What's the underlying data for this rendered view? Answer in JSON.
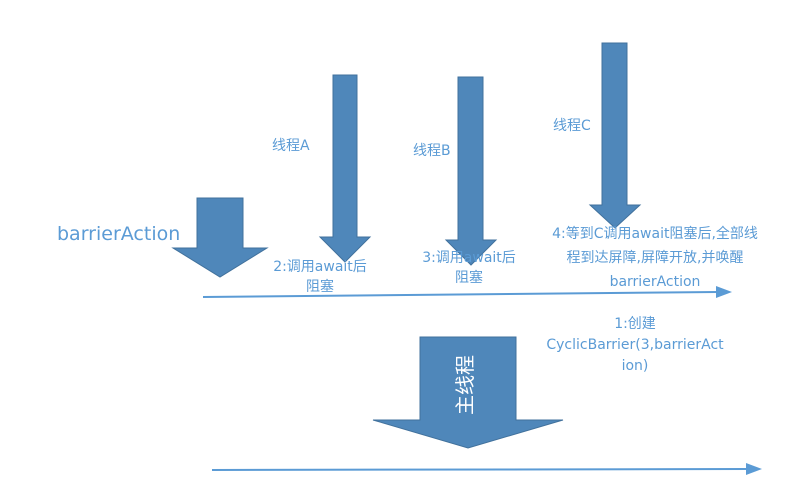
{
  "colors": {
    "arrow_fill": "#4f87ba",
    "arrow_stroke": "#41719c",
    "text": "#5b9bd5",
    "line": "#5b9bd5"
  },
  "labels": {
    "barrier_action": "barrierAction",
    "thread_a": "线程A",
    "thread_b": "线程B",
    "thread_c": "线程C",
    "main_thread": "主线程",
    "step1": [
      "1:创建",
      "CyclicBarrier(3,barrierAct",
      "ion)"
    ],
    "step2": [
      "2:调用await后",
      "阻塞"
    ],
    "step3": [
      "3:调用await后",
      "阻塞"
    ],
    "step4": [
      "4:等到C调用await阻塞后,全部线",
      "程到达屏障,屏障开放,并唤醒",
      "barrierAction"
    ]
  }
}
